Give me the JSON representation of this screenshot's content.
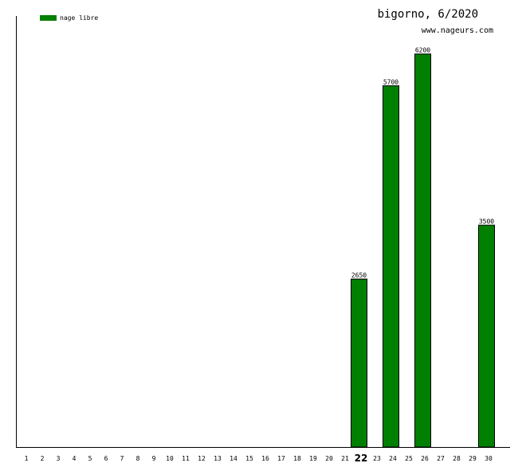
{
  "chart_data": {
    "type": "bar",
    "title": "bigorno, 6/2020",
    "subtitle": "www.nageurs.com",
    "series": [
      {
        "name": "nage libre",
        "color": "#008000",
        "points": [
          {
            "day": 22,
            "value": 2650
          },
          {
            "day": 24,
            "value": 5700
          },
          {
            "day": 26,
            "value": 6200
          },
          {
            "day": 30,
            "value": 3500
          }
        ]
      }
    ],
    "x_ticks": [
      1,
      2,
      3,
      4,
      5,
      6,
      7,
      8,
      9,
      10,
      11,
      12,
      13,
      14,
      15,
      16,
      17,
      18,
      19,
      20,
      21,
      22,
      23,
      24,
      25,
      26,
      27,
      28,
      29,
      30
    ],
    "highlight_tick": 22,
    "ylim": [
      0,
      6800
    ],
    "grid": false,
    "legend_position": "top-left"
  }
}
